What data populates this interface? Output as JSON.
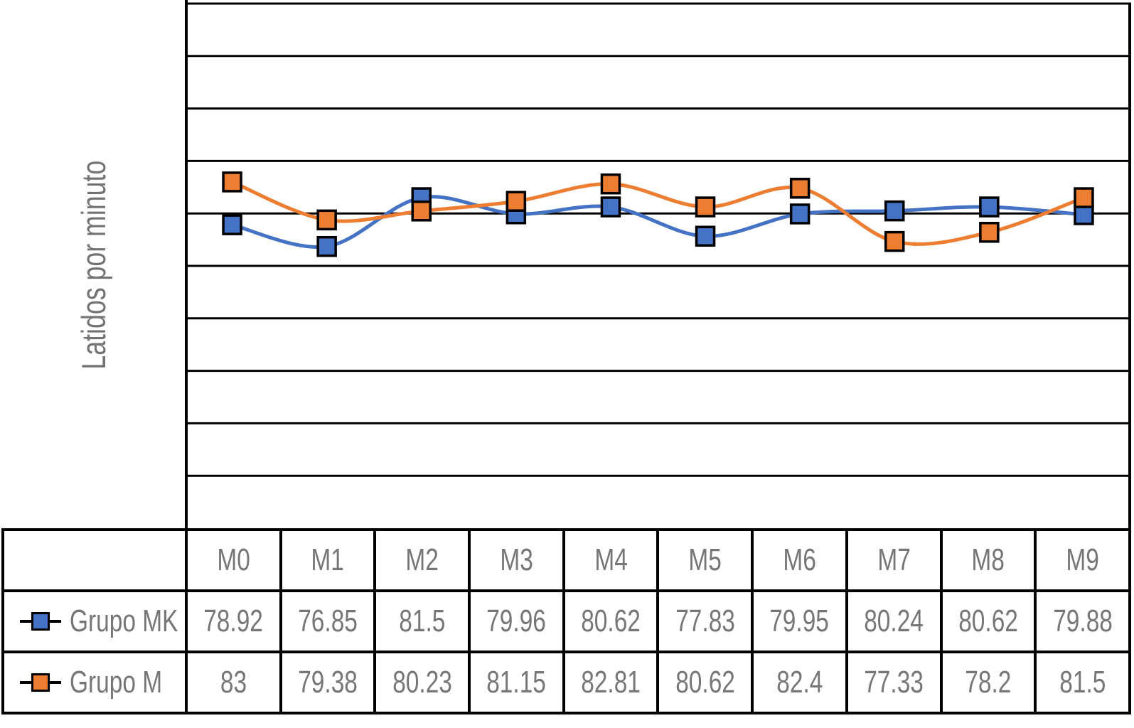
{
  "y_axis_title": "Latidos por minuto",
  "chart_data": {
    "type": "line",
    "title": "",
    "xlabel": "",
    "ylabel": "Latidos por minuto",
    "categories": [
      "M0",
      "M1",
      "M2",
      "M3",
      "M4",
      "M5",
      "M6",
      "M7",
      "M8",
      "M9"
    ],
    "series": [
      {
        "name": "Grupo MK",
        "color": "#4472C4",
        "values": [
          78.92,
          76.85,
          81.5,
          79.96,
          80.62,
          77.83,
          79.95,
          80.24,
          80.62,
          79.88
        ]
      },
      {
        "name": "Grupo M",
        "color": "#ED7D31",
        "values": [
          83,
          79.38,
          80.23,
          81.15,
          82.81,
          80.62,
          82.4,
          77.33,
          78.2,
          81.5
        ]
      }
    ],
    "ylim": [
      50,
      100
    ],
    "gridline_step": 5,
    "grid": true,
    "y_tick_labels_visible": false,
    "smooth": true,
    "marker": "square",
    "legend_position": "data-table-left",
    "grid_color": "#000000",
    "text_color": "#767676"
  }
}
